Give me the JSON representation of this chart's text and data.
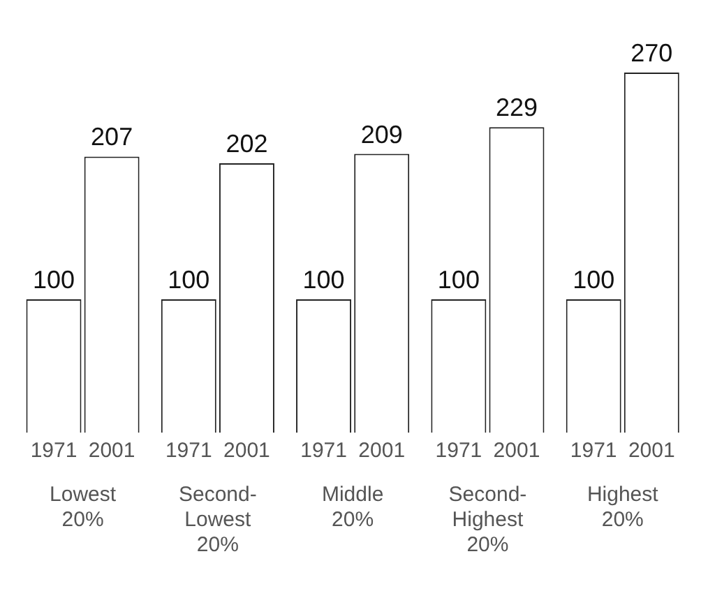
{
  "chart_data": {
    "type": "bar",
    "categories": [
      "Lowest 20%",
      "Second-Lowest 20%",
      "Middle 20%",
      "Second-Highest 20%",
      "Highest 20%"
    ],
    "series": [
      {
        "name": "1971",
        "color": "#ffffff",
        "values": [
          100,
          100,
          100,
          100,
          100
        ]
      },
      {
        "name": "2001",
        "color": "#ffffff",
        "values": [
          207,
          202,
          209,
          229,
          270
        ]
      }
    ],
    "data_labels": true,
    "legend": false,
    "grid": false
  }
}
